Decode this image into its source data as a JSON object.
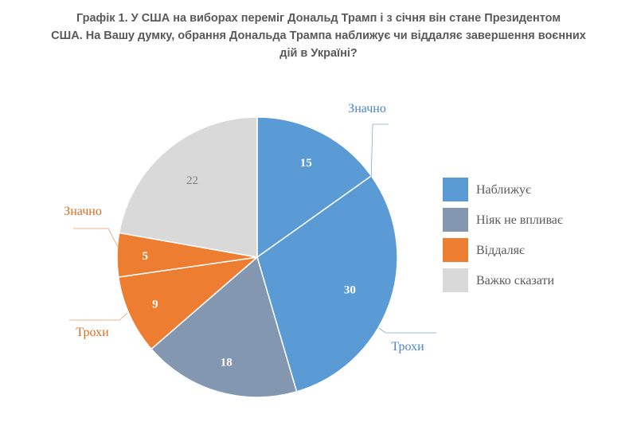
{
  "title_lines": [
    "Графік 1. У США на виборах переміг Дональд Трамп і з січня він стане Президентом",
    "США. На Вашу думку, обрання Дональда Трампа наближує чи віддаляє завершення воєнних",
    "дій в Україні?"
  ],
  "chart_data": {
    "type": "pie",
    "title": "Графік 1. У США на виборах переміг Дональд Трамп і з січня він стане Президентом США. На Вашу думку, обрання Дональда Трампа наближує чи віддаляє завершення воєнних дій в Україні?",
    "slices": [
      {
        "category": "Наближує",
        "sub_label": "Значно",
        "value": 15,
        "color": "#5b9bd5"
      },
      {
        "category": "Наближує",
        "sub_label": "Трохи",
        "value": 30,
        "color": "#5b9bd5"
      },
      {
        "category": "Ніяк не впливає",
        "sub_label": "",
        "value": 18,
        "color": "#8497b0"
      },
      {
        "category": "Віддаляє",
        "sub_label": "Трохи",
        "value": 9,
        "color": "#ed7d31"
      },
      {
        "category": "Віддаляє",
        "sub_label": "Значно",
        "value": 5,
        "color": "#ed7d31"
      },
      {
        "category": "Важко сказати",
        "sub_label": "",
        "value": 22,
        "color": "#d9d9d9"
      }
    ],
    "legend": [
      {
        "label": "Наближує",
        "color": "#5b9bd5"
      },
      {
        "label": "Ніяк не впливає",
        "color": "#8497b0"
      },
      {
        "label": "Віддаляє",
        "color": "#ed7d31"
      },
      {
        "label": "Важко сказати",
        "color": "#d9d9d9"
      }
    ],
    "legend_position": "right",
    "value_label_colors": {
      "light_on_dark": "#ffffff",
      "dark_on_light": "#7f7f7f"
    },
    "callout_colors": {
      "Наближує": "#4a86c5",
      "Віддаляє": "#d86f25"
    }
  }
}
